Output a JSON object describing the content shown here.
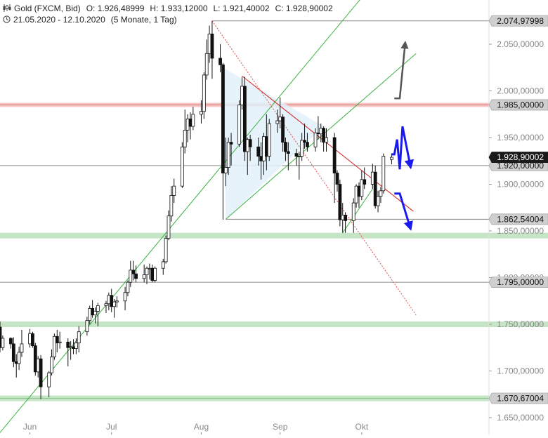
{
  "header": {
    "symbol_icon": "candlestick-icon",
    "instrument": "Gold (FXCM, Bid)",
    "open": "O: 1.926,48999",
    "high": "H: 1.933,12000",
    "low": "L: 1.921,40002",
    "close": "C: 1.928,90002",
    "clock_icon": "clock-icon",
    "range": "21.05.2020 - 12.10.2020",
    "period": "(5 Monate, 1 Tag)"
  },
  "chart_data": {
    "type": "candlestick",
    "title": "Gold (FXCM, Bid)",
    "ylim": [
      1642,
      2105
    ],
    "y_ticks": [
      {
        "value": 1650,
        "label": "1.650,00000"
      },
      {
        "value": 1700,
        "label": "1.700,00000"
      },
      {
        "value": 1750,
        "label": "1.750,00000"
      },
      {
        "value": 1800,
        "label": "1.800,00000"
      },
      {
        "value": 1850,
        "label": "1.850,00000"
      },
      {
        "value": 1900,
        "label": "1.900,00000"
      },
      {
        "value": 1950,
        "label": "1.950,00000"
      },
      {
        "value": 2000,
        "label": "2.000,00000"
      },
      {
        "value": 2050,
        "label": "2.050,00000"
      }
    ],
    "x_ticks": [
      {
        "date": "2020-06-01",
        "label": "Jun"
      },
      {
        "date": "2020-07-01",
        "label": "Jul"
      },
      {
        "date": "2020-08-03",
        "label": "Aug"
      },
      {
        "date": "2020-09-01",
        "label": "Sep"
      },
      {
        "date": "2020-10-01",
        "label": "Okt"
      }
    ],
    "horizontal_levels": [
      {
        "value": 2074.97998,
        "label": "2.074,97998",
        "style": "thin-grey"
      },
      {
        "value": 1985.0,
        "label": "1.985,00000",
        "style": "red-zone"
      },
      {
        "value": 1920.0,
        "label": "1.920,00000",
        "style": "thin-grey"
      },
      {
        "value": 1862.54004,
        "label": "1.862,54004",
        "style": "thin-grey"
      },
      {
        "value": 1845.0,
        "label": "",
        "style": "green-zone"
      },
      {
        "value": 1795.0,
        "label": "1.795,00000",
        "style": "thin-grey"
      },
      {
        "value": 1750.0,
        "label": "",
        "style": "green-zone"
      },
      {
        "value": 1670.67004,
        "label": "1.670,67004",
        "style": "green-zone"
      }
    ],
    "last_price": {
      "value": 1928.90002,
      "label": "1.928,90002"
    },
    "candles": [
      {
        "d": "2020-05-21",
        "o": 1747,
        "h": 1753,
        "l": 1720,
        "c": 1725
      },
      {
        "d": "2020-05-22",
        "o": 1725,
        "h": 1738,
        "l": 1722,
        "c": 1735
      },
      {
        "d": "2020-05-25",
        "o": 1735,
        "h": 1736,
        "l": 1724,
        "c": 1729
      },
      {
        "d": "2020-05-26",
        "o": 1729,
        "h": 1736,
        "l": 1704,
        "c": 1710
      },
      {
        "d": "2020-05-27",
        "o": 1710,
        "h": 1718,
        "l": 1693,
        "c": 1708
      },
      {
        "d": "2020-05-28",
        "o": 1708,
        "h": 1726,
        "l": 1701,
        "c": 1720
      },
      {
        "d": "2020-05-29",
        "o": 1720,
        "h": 1744,
        "l": 1715,
        "c": 1729
      },
      {
        "d": "2020-06-01",
        "o": 1729,
        "h": 1745,
        "l": 1725,
        "c": 1740
      },
      {
        "d": "2020-06-02",
        "o": 1740,
        "h": 1742,
        "l": 1725,
        "c": 1727
      },
      {
        "d": "2020-06-03",
        "o": 1727,
        "h": 1730,
        "l": 1695,
        "c": 1699
      },
      {
        "d": "2020-06-04",
        "o": 1699,
        "h": 1716,
        "l": 1693,
        "c": 1713
      },
      {
        "d": "2020-06-05",
        "o": 1713,
        "h": 1717,
        "l": 1670,
        "c": 1683
      },
      {
        "d": "2020-06-08",
        "o": 1683,
        "h": 1700,
        "l": 1672,
        "c": 1698
      },
      {
        "d": "2020-06-09",
        "o": 1698,
        "h": 1723,
        "l": 1695,
        "c": 1715
      },
      {
        "d": "2020-06-10",
        "o": 1715,
        "h": 1740,
        "l": 1712,
        "c": 1737
      },
      {
        "d": "2020-06-11",
        "o": 1737,
        "h": 1744,
        "l": 1720,
        "c": 1730
      },
      {
        "d": "2020-06-12",
        "o": 1730,
        "h": 1742,
        "l": 1724,
        "c": 1731
      },
      {
        "d": "2020-06-15",
        "o": 1731,
        "h": 1735,
        "l": 1705,
        "c": 1725
      },
      {
        "d": "2020-06-16",
        "o": 1725,
        "h": 1732,
        "l": 1712,
        "c": 1726
      },
      {
        "d": "2020-06-17",
        "o": 1726,
        "h": 1734,
        "l": 1718,
        "c": 1724
      },
      {
        "d": "2020-06-18",
        "o": 1724,
        "h": 1735,
        "l": 1718,
        "c": 1730
      },
      {
        "d": "2020-06-19",
        "o": 1730,
        "h": 1748,
        "l": 1720,
        "c": 1742
      },
      {
        "d": "2020-06-22",
        "o": 1742,
        "h": 1758,
        "l": 1738,
        "c": 1754
      },
      {
        "d": "2020-06-23",
        "o": 1754,
        "h": 1770,
        "l": 1750,
        "c": 1767
      },
      {
        "d": "2020-06-24",
        "o": 1767,
        "h": 1776,
        "l": 1757,
        "c": 1760
      },
      {
        "d": "2020-06-25",
        "o": 1760,
        "h": 1768,
        "l": 1751,
        "c": 1764
      },
      {
        "d": "2020-06-26",
        "o": 1764,
        "h": 1773,
        "l": 1748,
        "c": 1770
      },
      {
        "d": "2020-06-29",
        "o": 1770,
        "h": 1775,
        "l": 1762,
        "c": 1772
      },
      {
        "d": "2020-06-30",
        "o": 1772,
        "h": 1784,
        "l": 1765,
        "c": 1781
      },
      {
        "d": "2020-07-01",
        "o": 1781,
        "h": 1788,
        "l": 1763,
        "c": 1769
      },
      {
        "d": "2020-07-02",
        "o": 1769,
        "h": 1777,
        "l": 1757,
        "c": 1774
      },
      {
        "d": "2020-07-03",
        "o": 1774,
        "h": 1780,
        "l": 1768,
        "c": 1775
      },
      {
        "d": "2020-07-06",
        "o": 1775,
        "h": 1790,
        "l": 1765,
        "c": 1784
      },
      {
        "d": "2020-07-07",
        "o": 1784,
        "h": 1797,
        "l": 1780,
        "c": 1795
      },
      {
        "d": "2020-07-08",
        "o": 1795,
        "h": 1818,
        "l": 1790,
        "c": 1808
      },
      {
        "d": "2020-07-09",
        "o": 1808,
        "h": 1818,
        "l": 1797,
        "c": 1804
      },
      {
        "d": "2020-07-10",
        "o": 1804,
        "h": 1813,
        "l": 1795,
        "c": 1799
      },
      {
        "d": "2020-07-13",
        "o": 1799,
        "h": 1814,
        "l": 1795,
        "c": 1803
      },
      {
        "d": "2020-07-14",
        "o": 1803,
        "h": 1812,
        "l": 1793,
        "c": 1810
      },
      {
        "d": "2020-07-15",
        "o": 1810,
        "h": 1815,
        "l": 1798,
        "c": 1810
      },
      {
        "d": "2020-07-16",
        "o": 1810,
        "h": 1814,
        "l": 1795,
        "c": 1797
      },
      {
        "d": "2020-07-17",
        "o": 1797,
        "h": 1812,
        "l": 1795,
        "c": 1810
      },
      {
        "d": "2020-07-20",
        "o": 1810,
        "h": 1820,
        "l": 1803,
        "c": 1817
      },
      {
        "d": "2020-07-21",
        "o": 1817,
        "h": 1845,
        "l": 1815,
        "c": 1842
      },
      {
        "d": "2020-07-22",
        "o": 1842,
        "h": 1872,
        "l": 1840,
        "c": 1866
      },
      {
        "d": "2020-07-23",
        "o": 1866,
        "h": 1898,
        "l": 1860,
        "c": 1888
      },
      {
        "d": "2020-07-24",
        "o": 1888,
        "h": 1906,
        "l": 1880,
        "c": 1898
      },
      {
        "d": "2020-07-27",
        "o": 1898,
        "h": 1945,
        "l": 1896,
        "c": 1940
      },
      {
        "d": "2020-07-28",
        "o": 1940,
        "h": 1980,
        "l": 1933,
        "c": 1958
      },
      {
        "d": "2020-07-29",
        "o": 1958,
        "h": 1975,
        "l": 1945,
        "c": 1970
      },
      {
        "d": "2020-07-30",
        "o": 1970,
        "h": 1977,
        "l": 1948,
        "c": 1962
      },
      {
        "d": "2020-07-31",
        "o": 1962,
        "h": 1983,
        "l": 1958,
        "c": 1975
      },
      {
        "d": "2020-08-03",
        "o": 1975,
        "h": 1990,
        "l": 1965,
        "c": 1978
      },
      {
        "d": "2020-08-04",
        "o": 1978,
        "h": 2020,
        "l": 1970,
        "c": 2017
      },
      {
        "d": "2020-08-05",
        "o": 2017,
        "h": 2055,
        "l": 2012,
        "c": 2040
      },
      {
        "d": "2020-08-06",
        "o": 2040,
        "h": 2070,
        "l": 2030,
        "c": 2061
      },
      {
        "d": "2020-08-07",
        "o": 2061,
        "h": 2075,
        "l": 2013,
        "c": 2035
      },
      {
        "d": "2020-08-10",
        "o": 2035,
        "h": 2050,
        "l": 2020,
        "c": 2028
      },
      {
        "d": "2020-08-11",
        "o": 2028,
        "h": 2030,
        "l": 1862,
        "c": 1912
      },
      {
        "d": "2020-08-12",
        "o": 1912,
        "h": 1950,
        "l": 1898,
        "c": 1918
      },
      {
        "d": "2020-08-13",
        "o": 1918,
        "h": 1950,
        "l": 1910,
        "c": 1945
      },
      {
        "d": "2020-08-14",
        "o": 1945,
        "h": 1955,
        "l": 1920,
        "c": 1943
      },
      {
        "d": "2020-08-17",
        "o": 1943,
        "h": 1990,
        "l": 1940,
        "c": 1985
      },
      {
        "d": "2020-08-18",
        "o": 1985,
        "h": 2015,
        "l": 1980,
        "c": 2005
      },
      {
        "d": "2020-08-19",
        "o": 2005,
        "h": 2015,
        "l": 1925,
        "c": 1935
      },
      {
        "d": "2020-08-20",
        "o": 1935,
        "h": 1950,
        "l": 1910,
        "c": 1948
      },
      {
        "d": "2020-08-21",
        "o": 1948,
        "h": 1953,
        "l": 1925,
        "c": 1940
      },
      {
        "d": "2020-08-24",
        "o": 1940,
        "h": 1950,
        "l": 1920,
        "c": 1930
      },
      {
        "d": "2020-08-25",
        "o": 1930,
        "h": 1945,
        "l": 1905,
        "c": 1925
      },
      {
        "d": "2020-08-26",
        "o": 1925,
        "h": 1955,
        "l": 1910,
        "c": 1951
      },
      {
        "d": "2020-08-27",
        "o": 1951,
        "h": 1975,
        "l": 1915,
        "c": 1930
      },
      {
        "d": "2020-08-28",
        "o": 1930,
        "h": 1970,
        "l": 1925,
        "c": 1965
      },
      {
        "d": "2020-08-31",
        "o": 1965,
        "h": 1980,
        "l": 1955,
        "c": 1968
      },
      {
        "d": "2020-09-01",
        "o": 1968,
        "h": 1993,
        "l": 1960,
        "c": 1972
      },
      {
        "d": "2020-09-02",
        "o": 1972,
        "h": 1975,
        "l": 1935,
        "c": 1945
      },
      {
        "d": "2020-09-03",
        "o": 1945,
        "h": 1950,
        "l": 1925,
        "c": 1935
      },
      {
        "d": "2020-09-04",
        "o": 1935,
        "h": 1945,
        "l": 1915,
        "c": 1933
      },
      {
        "d": "2020-09-07",
        "o": 1933,
        "h": 1938,
        "l": 1920,
        "c": 1930
      },
      {
        "d": "2020-09-08",
        "o": 1930,
        "h": 1935,
        "l": 1905,
        "c": 1930
      },
      {
        "d": "2020-09-09",
        "o": 1930,
        "h": 1955,
        "l": 1925,
        "c": 1947
      },
      {
        "d": "2020-09-10",
        "o": 1947,
        "h": 1965,
        "l": 1938,
        "c": 1945
      },
      {
        "d": "2020-09-11",
        "o": 1945,
        "h": 1955,
        "l": 1935,
        "c": 1940
      },
      {
        "d": "2020-09-14",
        "o": 1940,
        "h": 1960,
        "l": 1935,
        "c": 1955
      },
      {
        "d": "2020-09-15",
        "o": 1955,
        "h": 1973,
        "l": 1948,
        "c": 1954
      },
      {
        "d": "2020-09-16",
        "o": 1954,
        "h": 1965,
        "l": 1945,
        "c": 1960
      },
      {
        "d": "2020-09-17",
        "o": 1960,
        "h": 1962,
        "l": 1935,
        "c": 1945
      },
      {
        "d": "2020-09-18",
        "o": 1945,
        "h": 1960,
        "l": 1935,
        "c": 1950
      },
      {
        "d": "2020-09-21",
        "o": 1950,
        "h": 1955,
        "l": 1880,
        "c": 1912
      },
      {
        "d": "2020-09-22",
        "o": 1912,
        "h": 1915,
        "l": 1892,
        "c": 1900
      },
      {
        "d": "2020-09-23",
        "o": 1900,
        "h": 1905,
        "l": 1855,
        "c": 1862
      },
      {
        "d": "2020-09-24",
        "o": 1862,
        "h": 1880,
        "l": 1848,
        "c": 1867
      },
      {
        "d": "2020-09-25",
        "o": 1867,
        "h": 1870,
        "l": 1848,
        "c": 1861
      },
      {
        "d": "2020-09-28",
        "o": 1861,
        "h": 1885,
        "l": 1848,
        "c": 1880
      },
      {
        "d": "2020-09-29",
        "o": 1880,
        "h": 1900,
        "l": 1875,
        "c": 1898
      },
      {
        "d": "2020-09-30",
        "o": 1898,
        "h": 1902,
        "l": 1875,
        "c": 1887
      },
      {
        "d": "2020-10-01",
        "o": 1887,
        "h": 1915,
        "l": 1883,
        "c": 1905
      },
      {
        "d": "2020-10-02",
        "o": 1905,
        "h": 1918,
        "l": 1895,
        "c": 1900
      },
      {
        "d": "2020-10-05",
        "o": 1900,
        "h": 1922,
        "l": 1895,
        "c": 1913
      },
      {
        "d": "2020-10-06",
        "o": 1913,
        "h": 1920,
        "l": 1874,
        "c": 1877
      },
      {
        "d": "2020-10-07",
        "o": 1877,
        "h": 1893,
        "l": 1870,
        "c": 1887
      },
      {
        "d": "2020-10-08",
        "o": 1887,
        "h": 1897,
        "l": 1880,
        "c": 1893
      },
      {
        "d": "2020-10-09",
        "o": 1893,
        "h": 1933,
        "l": 1890,
        "c": 1930
      },
      {
        "d": "2020-10-12",
        "o": 1926.49,
        "h": 1933.12,
        "l": 1921.4,
        "c": 1928.9
      }
    ],
    "trendlines": [
      {
        "name": "green-support-main",
        "color": "#3cb043",
        "from": {
          "d": "2020-05-19",
          "v": 1627
        },
        "to": {
          "d": "2020-10-21",
          "v": 2170
        }
      },
      {
        "name": "green-triangle-lower",
        "color": "#3cb043",
        "from": {
          "d": "2020-08-12",
          "v": 1862.54
        },
        "to": {
          "d": "2020-10-21",
          "v": 2040
        }
      },
      {
        "name": "green-channel-lower",
        "color": "#3cb043",
        "from": {
          "d": "2020-09-24",
          "v": 1848
        },
        "to": {
          "d": "2020-10-05",
          "v": 1895
        }
      },
      {
        "name": "red-triangle-upper",
        "color": "#d62020",
        "from": {
          "d": "2020-08-18",
          "v": 2016
        },
        "to": {
          "d": "2020-10-20",
          "v": 1871
        }
      },
      {
        "name": "red-dotted-from-high",
        "color": "#e05050",
        "from": {
          "d": "2020-08-07",
          "v": 2075
        },
        "to": {
          "d": "2020-10-21",
          "v": 1760
        }
      }
    ],
    "triangle_fill": {
      "color": "#e2f1fa",
      "points": [
        {
          "d": "2020-08-11",
          "v": 2025
        },
        {
          "d": "2020-09-17",
          "v": 1962
        },
        {
          "d": "2020-08-12",
          "v": 1862.54
        }
      ]
    },
    "scenario_arrows": [
      {
        "name": "grey-breakout-arrow",
        "color": "#555555",
        "points": [
          {
            "d": "2020-10-13",
            "v": 1992
          },
          {
            "d": "2020-10-15",
            "v": 1992
          },
          {
            "d": "2020-10-17",
            "v": 2052
          }
        ]
      },
      {
        "name": "blue-upper-scenario-arrow",
        "color": "#1a1aee",
        "points": [
          {
            "d": "2020-10-12",
            "v": 1932
          },
          {
            "d": "2020-10-13",
            "v": 1932
          },
          {
            "d": "2020-10-14",
            "v": 1948
          },
          {
            "d": "2020-10-15",
            "v": 1916
          },
          {
            "d": "2020-10-16",
            "v": 1962
          },
          {
            "d": "2020-10-19",
            "v": 1918
          }
        ]
      },
      {
        "name": "blue-lower-scenario-arrow",
        "color": "#1a1aee",
        "points": [
          {
            "d": "2020-10-13",
            "v": 1890
          },
          {
            "d": "2020-10-15",
            "v": 1890
          },
          {
            "d": "2020-10-19",
            "v": 1852
          }
        ]
      }
    ]
  }
}
